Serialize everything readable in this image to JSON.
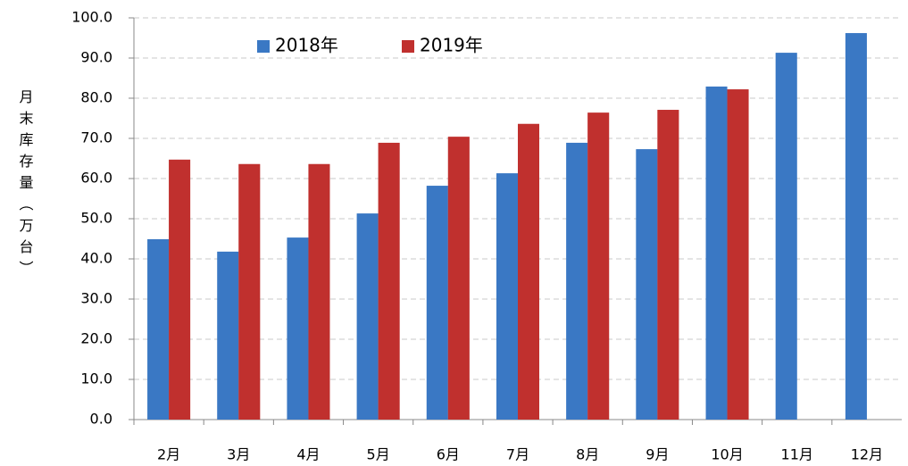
{
  "chart_data": {
    "type": "bar",
    "y_label": "月末库存量（万台）",
    "categories": [
      "2月",
      "3月",
      "4月",
      "5月",
      "6月",
      "7月",
      "8月",
      "9月",
      "10月",
      "11月",
      "12月"
    ],
    "series": [
      {
        "name": "2018年",
        "color": "#3a78c4",
        "values": [
          44.9,
          41.8,
          45.3,
          51.3,
          58.2,
          61.3,
          68.9,
          67.3,
          82.9,
          91.3,
          96.2
        ]
      },
      {
        "name": "2019年",
        "color": "#c0302e",
        "values": [
          64.7,
          63.6,
          63.6,
          68.9,
          70.4,
          73.6,
          76.4,
          77.1,
          82.2,
          null,
          null
        ]
      }
    ],
    "ylim": [
      0,
      100
    ],
    "yticks": [
      {
        "value": 0,
        "label": "0.0"
      },
      {
        "value": 10,
        "label": "10.0"
      },
      {
        "value": 20,
        "label": "20.0"
      },
      {
        "value": 30,
        "label": "30.0"
      },
      {
        "value": 40,
        "label": "40.0"
      },
      {
        "value": 50,
        "label": "50.0"
      },
      {
        "value": 60,
        "label": "60.0"
      },
      {
        "value": 70,
        "label": "70.0"
      },
      {
        "value": 80,
        "label": "80.0"
      },
      {
        "value": 90,
        "label": "90.0"
      },
      {
        "value": 100,
        "label": "100.0"
      }
    ],
    "grid": true
  }
}
